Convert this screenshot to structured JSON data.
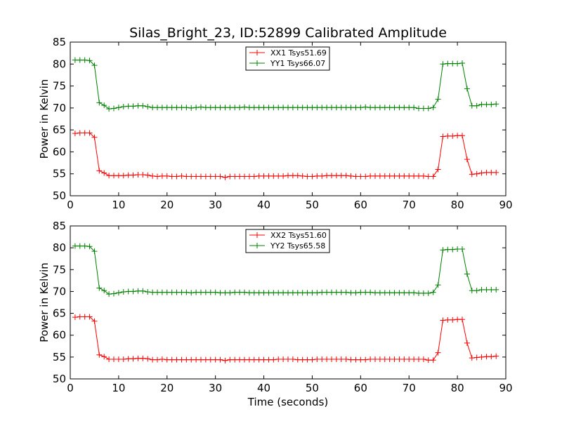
{
  "figure": {
    "title": "Silas_Bright_23, ID:52899 Calibrated Amplitude"
  },
  "chart_data": [
    {
      "type": "line",
      "title": "Silas_Bright_23, ID:52899 Calibrated Amplitude",
      "xlabel": "",
      "ylabel": "Power in Kelvin",
      "xlim": [
        0,
        90
      ],
      "ylim": [
        50,
        85
      ],
      "xticks": [
        "0",
        "10",
        "20",
        "30",
        "40",
        "50",
        "60",
        "70",
        "80",
        "90"
      ],
      "yticks": [
        "50",
        "55",
        "60",
        "65",
        "70",
        "75",
        "80",
        "85"
      ],
      "grid": false,
      "legend_position": "top-center",
      "x": [
        1,
        2,
        3,
        4,
        5,
        6,
        7,
        8,
        9,
        10,
        11,
        12,
        13,
        14,
        15,
        16,
        17,
        18,
        19,
        20,
        21,
        22,
        23,
        24,
        25,
        26,
        27,
        28,
        29,
        30,
        31,
        32,
        33,
        34,
        35,
        36,
        37,
        38,
        39,
        40,
        41,
        42,
        43,
        44,
        45,
        46,
        47,
        48,
        49,
        50,
        51,
        52,
        53,
        54,
        55,
        56,
        57,
        58,
        59,
        60,
        61,
        62,
        63,
        64,
        65,
        66,
        67,
        68,
        69,
        70,
        71,
        72,
        73,
        74,
        75,
        76,
        77,
        78,
        79,
        80,
        81,
        82,
        83,
        84,
        85,
        86,
        87,
        88
      ],
      "series": [
        {
          "name": "XX1 Tsys51.69",
          "color": "#ff0000",
          "values": [
            64.2,
            64.3,
            64.3,
            64.3,
            63.3,
            55.7,
            55.2,
            54.6,
            54.6,
            54.6,
            54.6,
            54.7,
            54.7,
            54.8,
            54.8,
            54.7,
            54.5,
            54.4,
            54.5,
            54.5,
            54.4,
            54.4,
            54.5,
            54.4,
            54.4,
            54.4,
            54.4,
            54.4,
            54.4,
            54.4,
            54.4,
            54.2,
            54.4,
            54.4,
            54.4,
            54.4,
            54.4,
            54.4,
            54.5,
            54.5,
            54.5,
            54.5,
            54.5,
            54.5,
            54.6,
            54.6,
            54.6,
            54.5,
            54.4,
            54.4,
            54.5,
            54.5,
            54.6,
            54.6,
            54.6,
            54.6,
            54.6,
            54.5,
            54.4,
            54.4,
            54.4,
            54.5,
            54.5,
            54.5,
            54.5,
            54.5,
            54.5,
            54.5,
            54.5,
            54.5,
            54.5,
            54.5,
            54.5,
            54.4,
            54.4,
            56.0,
            63.5,
            63.6,
            63.6,
            63.7,
            63.7,
            58.3,
            54.9,
            55.0,
            55.2,
            55.3,
            55.3,
            55.3
          ]
        },
        {
          "name": "YY1 Tsys66.07",
          "color": "#008000",
          "values": [
            80.9,
            80.9,
            80.9,
            80.8,
            79.7,
            71.2,
            70.6,
            69.8,
            69.9,
            70.1,
            70.3,
            70.4,
            70.4,
            70.5,
            70.5,
            70.3,
            70.1,
            70.1,
            70.1,
            70.1,
            70.1,
            70.1,
            70.1,
            70.1,
            70.0,
            70.1,
            70.2,
            70.1,
            70.1,
            70.1,
            70.1,
            70.1,
            70.1,
            70.1,
            70.1,
            70.2,
            70.1,
            70.1,
            70.1,
            70.1,
            70.1,
            70.1,
            70.1,
            70.1,
            70.1,
            70.1,
            70.1,
            70.1,
            70.1,
            70.1,
            70.1,
            70.1,
            70.1,
            70.1,
            70.1,
            70.1,
            70.1,
            70.1,
            70.1,
            70.1,
            70.2,
            70.1,
            70.1,
            70.1,
            70.1,
            70.1,
            70.1,
            70.1,
            70.1,
            70.1,
            70.1,
            69.9,
            69.9,
            69.9,
            70.1,
            72.0,
            80.0,
            80.1,
            80.1,
            80.1,
            80.2,
            74.4,
            70.5,
            70.5,
            70.8,
            70.8,
            70.8,
            70.9
          ]
        }
      ]
    },
    {
      "type": "line",
      "title": "",
      "xlabel": "Time (seconds)",
      "ylabel": "Power in Kelvin",
      "xlim": [
        0,
        90
      ],
      "ylim": [
        50,
        85
      ],
      "xticks": [
        "0",
        "10",
        "20",
        "30",
        "40",
        "50",
        "60",
        "70",
        "80",
        "90"
      ],
      "yticks": [
        "50",
        "55",
        "60",
        "65",
        "70",
        "75",
        "80",
        "85"
      ],
      "grid": false,
      "legend_position": "top-center",
      "x": [
        1,
        2,
        3,
        4,
        5,
        6,
        7,
        8,
        9,
        10,
        11,
        12,
        13,
        14,
        15,
        16,
        17,
        18,
        19,
        20,
        21,
        22,
        23,
        24,
        25,
        26,
        27,
        28,
        29,
        30,
        31,
        32,
        33,
        34,
        35,
        36,
        37,
        38,
        39,
        40,
        41,
        42,
        43,
        44,
        45,
        46,
        47,
        48,
        49,
        50,
        51,
        52,
        53,
        54,
        55,
        56,
        57,
        58,
        59,
        60,
        61,
        62,
        63,
        64,
        65,
        66,
        67,
        68,
        69,
        70,
        71,
        72,
        73,
        74,
        75,
        76,
        77,
        78,
        79,
        80,
        81,
        82,
        83,
        84,
        85,
        86,
        87,
        88
      ],
      "series": [
        {
          "name": "XX2 Tsys51.60",
          "color": "#ff0000",
          "values": [
            64.1,
            64.2,
            64.2,
            64.2,
            63.2,
            55.5,
            55.1,
            54.5,
            54.5,
            54.5,
            54.5,
            54.6,
            54.6,
            54.7,
            54.7,
            54.6,
            54.4,
            54.4,
            54.5,
            54.4,
            54.4,
            54.4,
            54.4,
            54.4,
            54.4,
            54.4,
            54.4,
            54.4,
            54.4,
            54.4,
            54.4,
            54.2,
            54.4,
            54.4,
            54.4,
            54.4,
            54.4,
            54.4,
            54.4,
            54.4,
            54.4,
            54.4,
            54.5,
            54.5,
            54.5,
            54.5,
            54.4,
            54.4,
            54.4,
            54.4,
            54.5,
            54.5,
            54.5,
            54.5,
            54.5,
            54.5,
            54.5,
            54.4,
            54.4,
            54.4,
            54.4,
            54.5,
            54.5,
            54.5,
            54.5,
            54.5,
            54.5,
            54.5,
            54.5,
            54.5,
            54.5,
            54.5,
            54.5,
            54.3,
            54.3,
            56.0,
            63.4,
            63.5,
            63.5,
            63.6,
            63.6,
            58.2,
            54.8,
            54.9,
            55.0,
            55.1,
            55.1,
            55.2
          ]
        },
        {
          "name": "YY2 Tsys65.58",
          "color": "#008000",
          "values": [
            80.4,
            80.4,
            80.4,
            80.3,
            79.2,
            70.8,
            70.2,
            69.4,
            69.5,
            69.7,
            69.9,
            70.0,
            70.0,
            70.1,
            70.1,
            69.9,
            69.8,
            69.8,
            69.8,
            69.8,
            69.8,
            69.8,
            69.8,
            69.8,
            69.7,
            69.8,
            69.8,
            69.8,
            69.8,
            69.8,
            69.7,
            69.7,
            69.7,
            69.8,
            69.8,
            69.8,
            69.7,
            69.7,
            69.7,
            69.7,
            69.7,
            69.7,
            69.7,
            69.7,
            69.7,
            69.7,
            69.7,
            69.7,
            69.7,
            69.7,
            69.7,
            69.8,
            69.8,
            69.8,
            69.8,
            69.8,
            69.8,
            69.7,
            69.7,
            69.8,
            69.8,
            69.8,
            69.7,
            69.7,
            69.7,
            69.7,
            69.7,
            69.7,
            69.7,
            69.7,
            69.7,
            69.6,
            69.6,
            69.6,
            69.8,
            71.5,
            79.5,
            79.6,
            79.6,
            79.7,
            79.7,
            74.0,
            70.2,
            70.2,
            70.4,
            70.4,
            70.4,
            70.4
          ]
        }
      ]
    }
  ]
}
